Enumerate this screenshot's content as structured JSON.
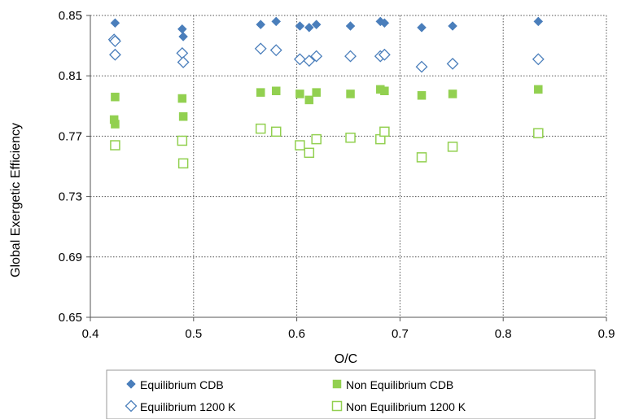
{
  "chart_data": {
    "type": "scatter",
    "title": "",
    "xlabel": "O/C",
    "ylabel": "Global Exergetic Efficiency",
    "xlim": [
      0.4,
      0.9
    ],
    "ylim": [
      0.65,
      0.85
    ],
    "xticks": [
      "0.4",
      "0.5",
      "0.6",
      "0.7",
      "0.8",
      "0.9"
    ],
    "yticks": [
      "0.65",
      "0.69",
      "0.73",
      "0.77",
      "0.81",
      "0.85"
    ],
    "grid": "dotted",
    "legend_position": "bottom",
    "series": [
      {
        "name": "Equilibrium CDB",
        "marker": "diamond-filled",
        "color": "#4a7ebb",
        "points": [
          [
            0.424,
            0.845
          ],
          [
            0.489,
            0.841
          ],
          [
            0.49,
            0.836
          ],
          [
            0.565,
            0.844
          ],
          [
            0.58,
            0.846
          ],
          [
            0.603,
            0.843
          ],
          [
            0.612,
            0.842
          ],
          [
            0.619,
            0.844
          ],
          [
            0.652,
            0.843
          ],
          [
            0.681,
            0.846
          ],
          [
            0.685,
            0.845
          ],
          [
            0.721,
            0.842
          ],
          [
            0.751,
            0.843
          ],
          [
            0.834,
            0.846
          ]
        ]
      },
      {
        "name": "Equilibrium 1200 K",
        "marker": "diamond-open",
        "color": "#4a7ebb",
        "points": [
          [
            0.423,
            0.834
          ],
          [
            0.424,
            0.833
          ],
          [
            0.424,
            0.824
          ],
          [
            0.489,
            0.825
          ],
          [
            0.49,
            0.819
          ],
          [
            0.565,
            0.828
          ],
          [
            0.58,
            0.827
          ],
          [
            0.603,
            0.821
          ],
          [
            0.612,
            0.82
          ],
          [
            0.619,
            0.823
          ],
          [
            0.652,
            0.823
          ],
          [
            0.681,
            0.823
          ],
          [
            0.685,
            0.824
          ],
          [
            0.721,
            0.816
          ],
          [
            0.751,
            0.818
          ],
          [
            0.834,
            0.821
          ]
        ]
      },
      {
        "name": "Non Equilibrium CDB",
        "marker": "square-filled",
        "color": "#92d050",
        "points": [
          [
            0.424,
            0.796
          ],
          [
            0.423,
            0.781
          ],
          [
            0.424,
            0.778
          ],
          [
            0.489,
            0.795
          ],
          [
            0.49,
            0.783
          ],
          [
            0.565,
            0.799
          ],
          [
            0.58,
            0.8
          ],
          [
            0.603,
            0.798
          ],
          [
            0.612,
            0.794
          ],
          [
            0.619,
            0.799
          ],
          [
            0.652,
            0.798
          ],
          [
            0.681,
            0.801
          ],
          [
            0.685,
            0.8
          ],
          [
            0.721,
            0.797
          ],
          [
            0.751,
            0.798
          ],
          [
            0.834,
            0.801
          ]
        ]
      },
      {
        "name": "Non Equilibrium 1200 K",
        "marker": "square-open",
        "color": "#92d050",
        "points": [
          [
            0.424,
            0.764
          ],
          [
            0.489,
            0.767
          ],
          [
            0.49,
            0.752
          ],
          [
            0.565,
            0.775
          ],
          [
            0.58,
            0.773
          ],
          [
            0.603,
            0.764
          ],
          [
            0.612,
            0.759
          ],
          [
            0.619,
            0.768
          ],
          [
            0.652,
            0.769
          ],
          [
            0.681,
            0.768
          ],
          [
            0.685,
            0.773
          ],
          [
            0.721,
            0.756
          ],
          [
            0.751,
            0.763
          ],
          [
            0.834,
            0.772
          ]
        ]
      }
    ]
  }
}
